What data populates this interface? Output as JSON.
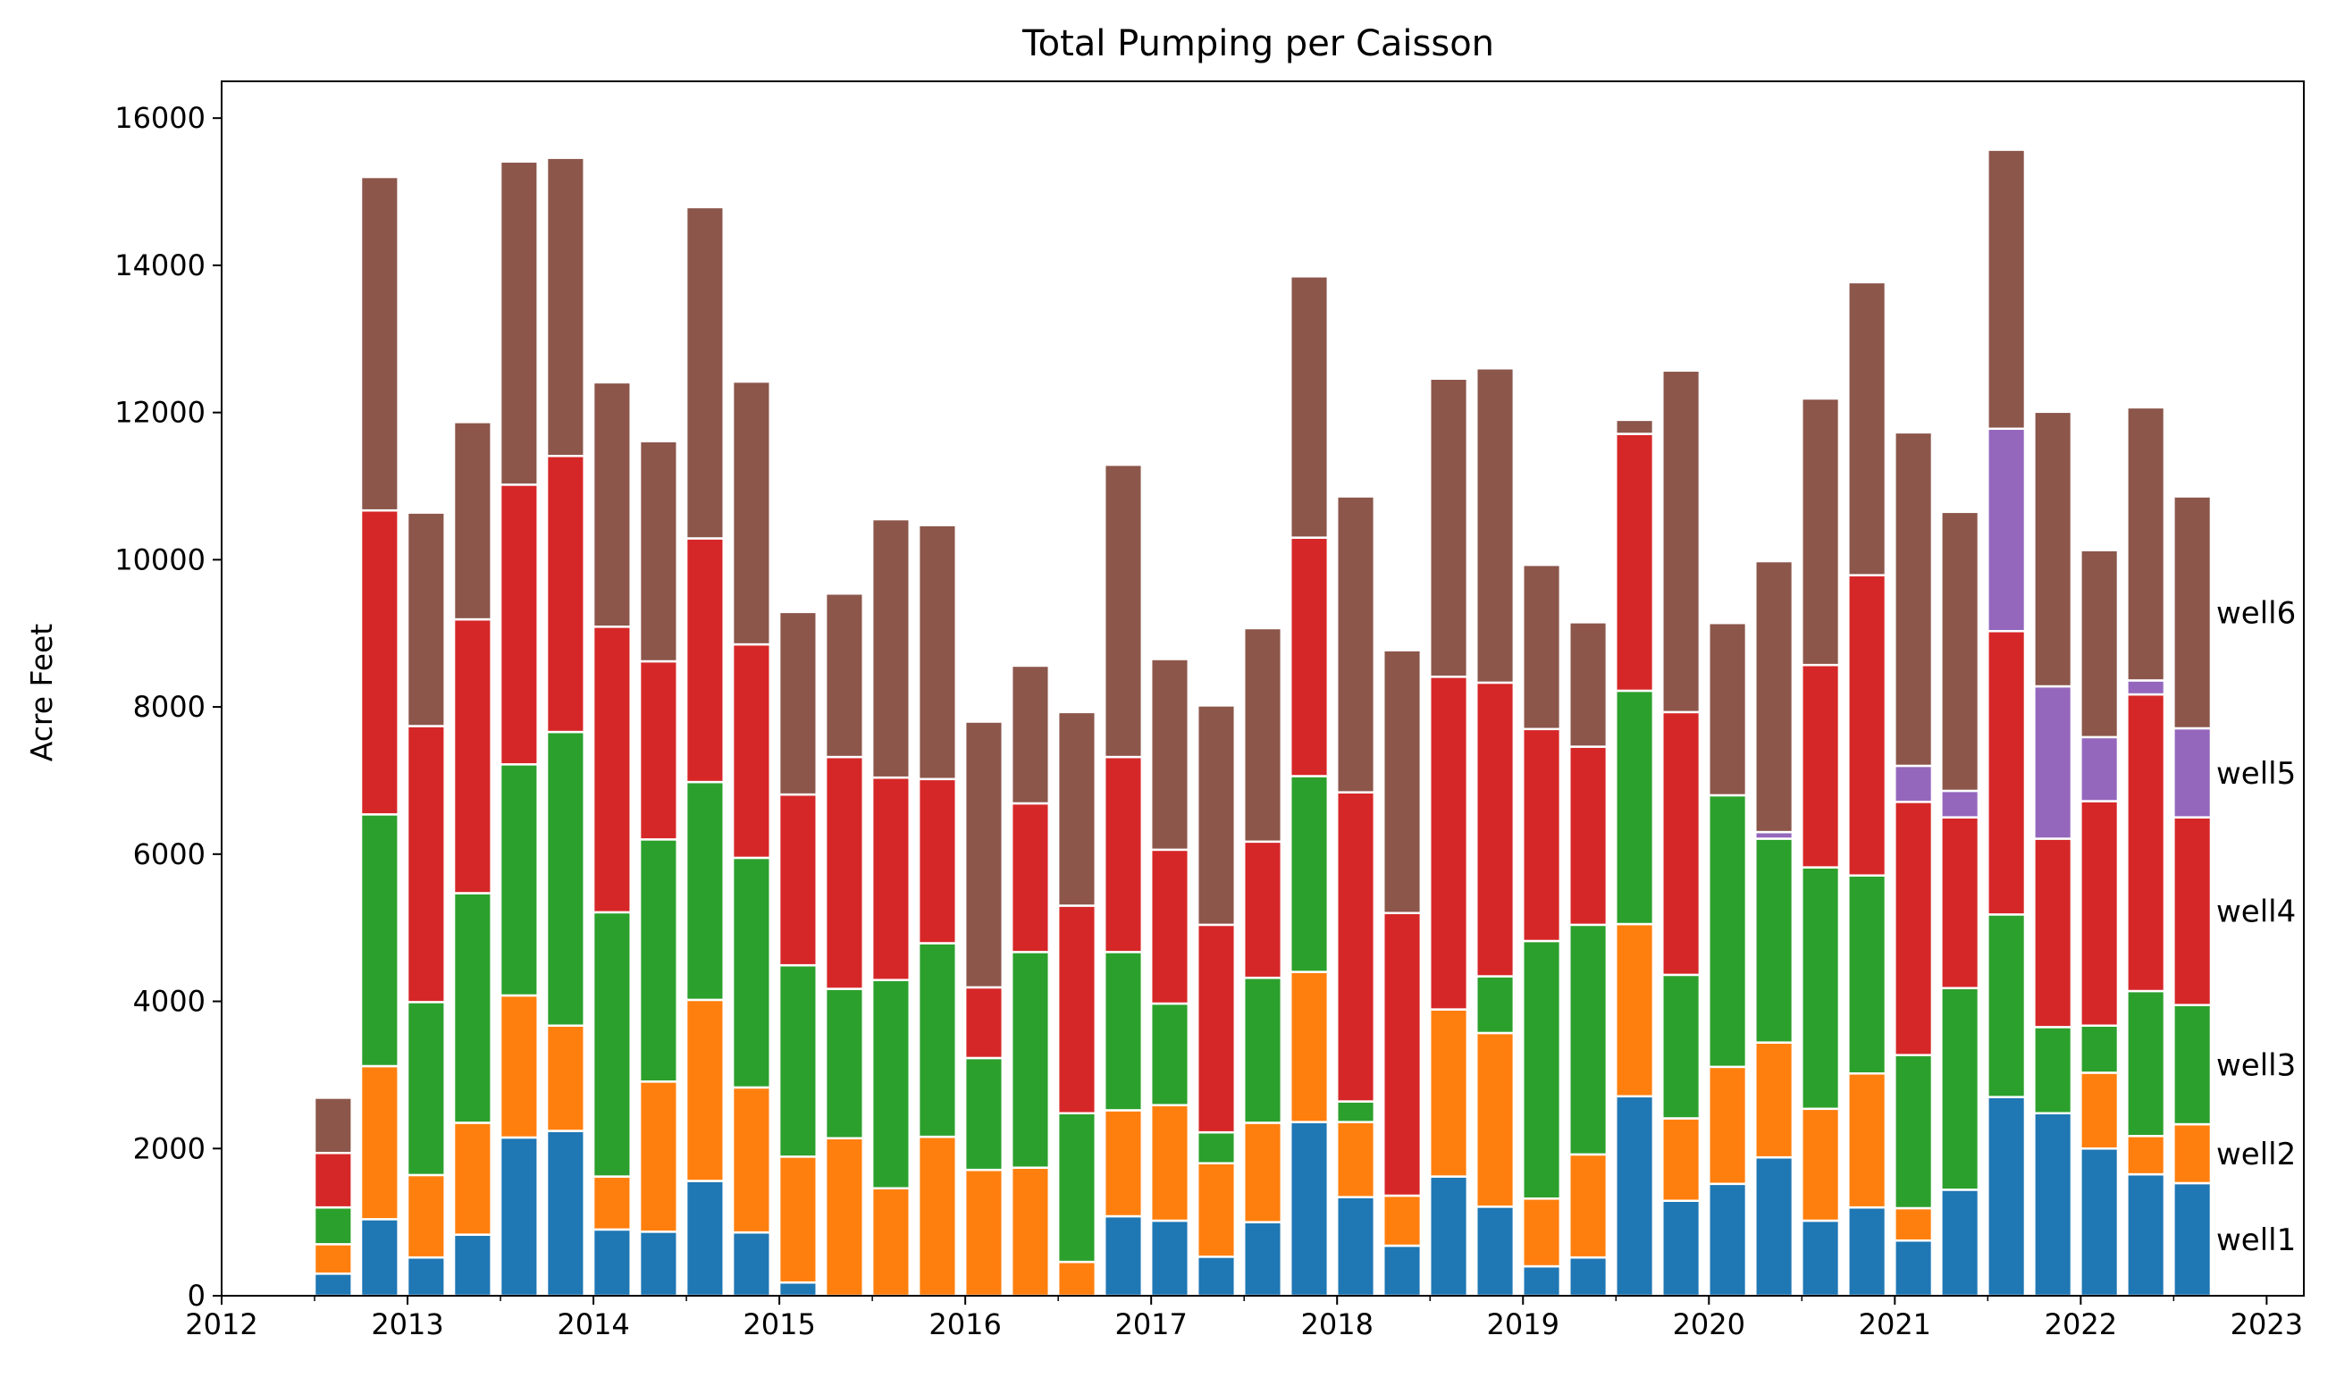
{
  "chart_data": {
    "type": "bar",
    "stacked": true,
    "title": "Total Pumping per Caisson",
    "xlabel": "",
    "ylabel": "Acre Feet",
    "xlim": [
      2012.0,
      2023.2
    ],
    "ylim": [
      0,
      16500
    ],
    "x_ticks": [
      "2012",
      "2013",
      "2014",
      "2015",
      "2016",
      "2017",
      "2018",
      "2019",
      "2020",
      "2021",
      "2022",
      "2023"
    ],
    "y_ticks": [
      "0",
      "2000",
      "4000",
      "6000",
      "8000",
      "10000",
      "12000",
      "14000",
      "16000"
    ],
    "grid": false,
    "legend": "series labels at right end of bars",
    "x": [
      2012.6,
      2012.85,
      2013.1,
      2013.35,
      2013.6,
      2013.85,
      2014.1,
      2014.35,
      2014.6,
      2014.85,
      2015.1,
      2015.35,
      2015.6,
      2015.85,
      2016.1,
      2016.35,
      2016.6,
      2016.85,
      2017.1,
      2017.35,
      2017.6,
      2017.85,
      2018.1,
      2018.35,
      2018.6,
      2018.85,
      2019.1,
      2019.35,
      2019.6,
      2019.85,
      2020.1,
      2020.35,
      2020.6,
      2020.85,
      2021.1,
      2021.35,
      2021.6,
      2021.85,
      2022.1,
      2022.35,
      2022.6
    ],
    "series": [
      {
        "name": "well1",
        "color": "#1f77b4",
        "values": [
          300,
          1040,
          520,
          830,
          2150,
          2240,
          900,
          870,
          1560,
          860,
          180,
          0,
          0,
          0,
          0,
          0,
          0,
          1080,
          1020,
          530,
          1000,
          2360,
          1340,
          680,
          1620,
          1210,
          400,
          520,
          2710,
          1290,
          1520,
          1880,
          1020,
          1200,
          750,
          1440,
          2700,
          2480,
          2000,
          1650,
          1530
        ]
      },
      {
        "name": "well2",
        "color": "#ff7f0e",
        "values": [
          400,
          2080,
          1120,
          1520,
          1930,
          1430,
          720,
          2040,
          2460,
          1970,
          1710,
          2140,
          1460,
          2160,
          1710,
          1740,
          460,
          1440,
          1570,
          1270,
          1350,
          2040,
          1020,
          680,
          2270,
          2360,
          920,
          1400,
          2340,
          1120,
          1590,
          1560,
          1520,
          1820,
          440,
          0,
          0,
          0,
          1030,
          520,
          800
        ]
      },
      {
        "name": "well3",
        "color": "#2ca02c",
        "values": [
          500,
          3420,
          2350,
          3120,
          3140,
          3990,
          3590,
          3290,
          2960,
          3120,
          2600,
          2030,
          2830,
          2630,
          1520,
          2930,
          2020,
          2150,
          1380,
          420,
          1970,
          2660,
          280,
          0,
          0,
          770,
          3500,
          3120,
          3170,
          1950,
          3690,
          2770,
          3280,
          2690,
          2080,
          2740,
          2480,
          1170,
          640,
          1970,
          1620
        ]
      },
      {
        "name": "well4",
        "color": "#d62728",
        "values": [
          740,
          4130,
          3750,
          3720,
          3800,
          3750,
          3880,
          2420,
          3310,
          2900,
          2320,
          3150,
          2750,
          2230,
          960,
          2020,
          2820,
          2650,
          2090,
          2820,
          1850,
          3240,
          4200,
          3840,
          4520,
          3990,
          2880,
          2420,
          3490,
          3570,
          0,
          0,
          2750,
          4080,
          3440,
          2320,
          3850,
          2560,
          3050,
          4030,
          2550
        ]
      },
      {
        "name": "well5",
        "color": "#9467bd",
        "values": [
          0,
          0,
          0,
          0,
          0,
          0,
          0,
          0,
          0,
          0,
          0,
          0,
          0,
          0,
          0,
          0,
          0,
          0,
          0,
          0,
          0,
          0,
          0,
          0,
          0,
          0,
          0,
          0,
          0,
          0,
          0,
          90,
          0,
          0,
          490,
          360,
          2750,
          2070,
          870,
          190,
          1210
        ]
      },
      {
        "name": "well6",
        "color": "#8c564b",
        "values": [
          750,
          4530,
          2900,
          2680,
          4390,
          4050,
          3320,
          2990,
          4500,
          3570,
          2480,
          2220,
          3510,
          3450,
          3610,
          1870,
          2630,
          3970,
          2590,
          2980,
          2900,
          3550,
          4020,
          3570,
          4050,
          4270,
          2230,
          1690,
          190,
          4640,
          2340,
          3680,
          3620,
          3980,
          4530,
          3790,
          3790,
          3730,
          2540,
          3710,
          3150
        ]
      }
    ]
  }
}
